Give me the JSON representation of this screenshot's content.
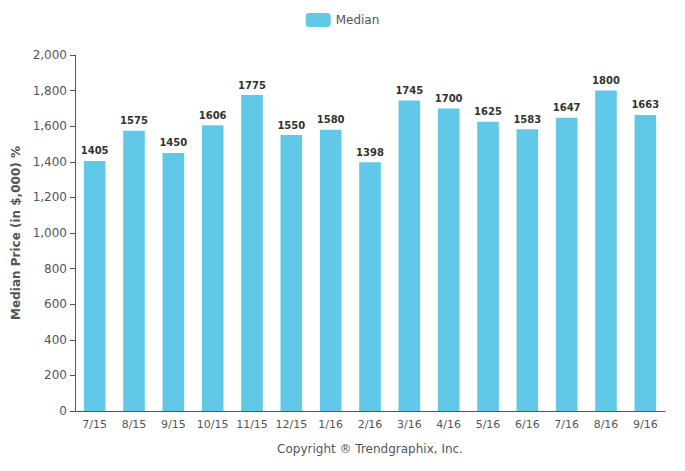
{
  "chart_data": {
    "type": "bar",
    "categories": [
      "7/15",
      "8/15",
      "9/15",
      "10/15",
      "11/15",
      "12/15",
      "1/16",
      "2/16",
      "3/16",
      "4/16",
      "5/16",
      "6/16",
      "7/16",
      "8/16",
      "9/16"
    ],
    "series": [
      {
        "name": "Median",
        "color": "#62C8E8",
        "values": [
          1405,
          1575,
          1450,
          1606,
          1775,
          1550,
          1580,
          1398,
          1745,
          1700,
          1625,
          1583,
          1647,
          1800,
          1663
        ]
      }
    ],
    "xlabel": "Copyright ® Trendgraphix, Inc.",
    "ylabel": "Median Price (in $,000) %",
    "ylim": [
      0,
      2000
    ],
    "yticks": [
      0,
      200,
      400,
      600,
      800,
      1000,
      1200,
      1400,
      1600,
      1800,
      2000
    ],
    "grid": false,
    "legend": "top",
    "data_labels": true
  }
}
